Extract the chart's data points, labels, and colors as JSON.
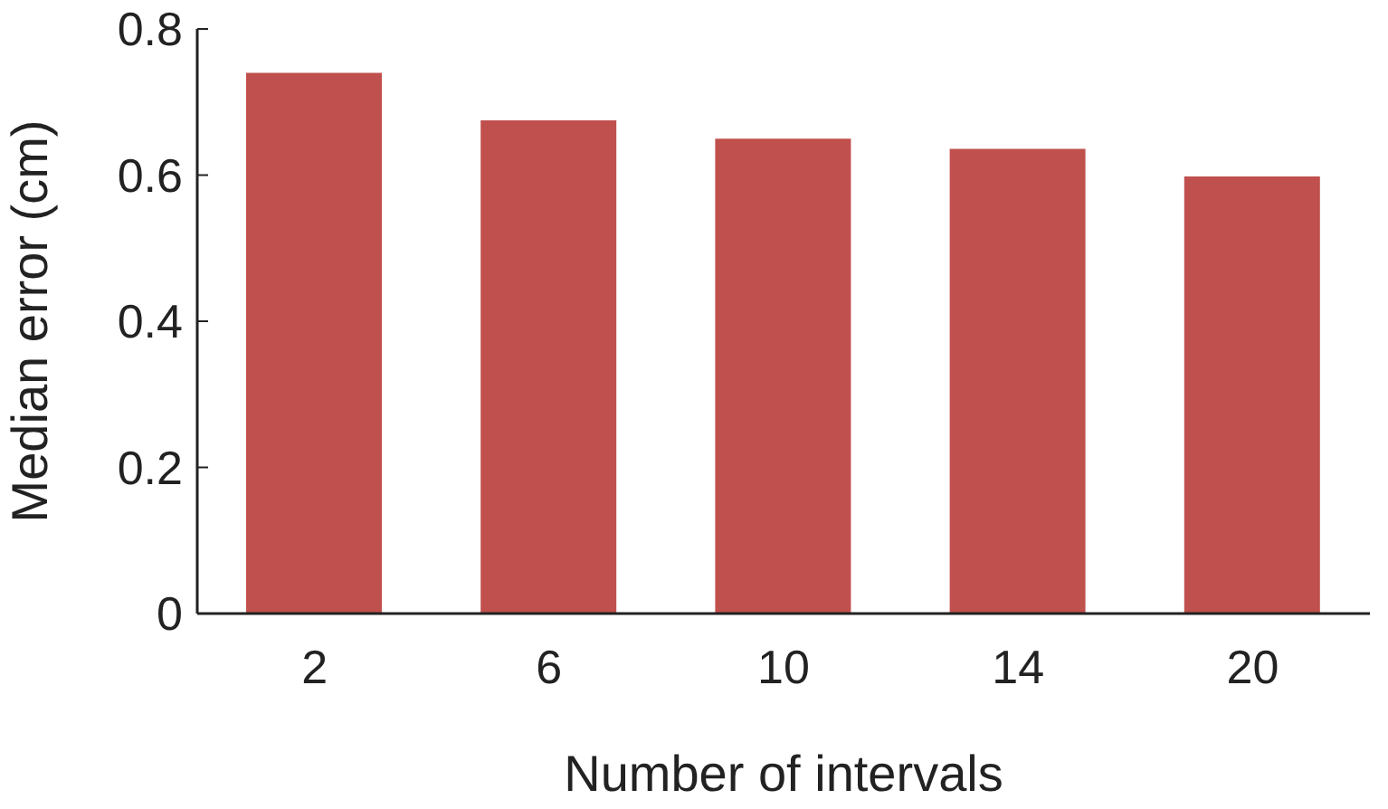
{
  "chart_data": {
    "type": "bar",
    "xlabel": "Number of intervals",
    "ylabel": "Median error (cm)",
    "categories": [
      "2",
      "6",
      "10",
      "14",
      "20"
    ],
    "values": [
      0.74,
      0.675,
      0.65,
      0.636,
      0.598
    ],
    "color": "#c0504d",
    "ylim": [
      0,
      0.8
    ],
    "yticks": [
      0,
      0.2,
      0.4,
      0.6,
      0.8
    ],
    "grid": false,
    "legend": false
  }
}
